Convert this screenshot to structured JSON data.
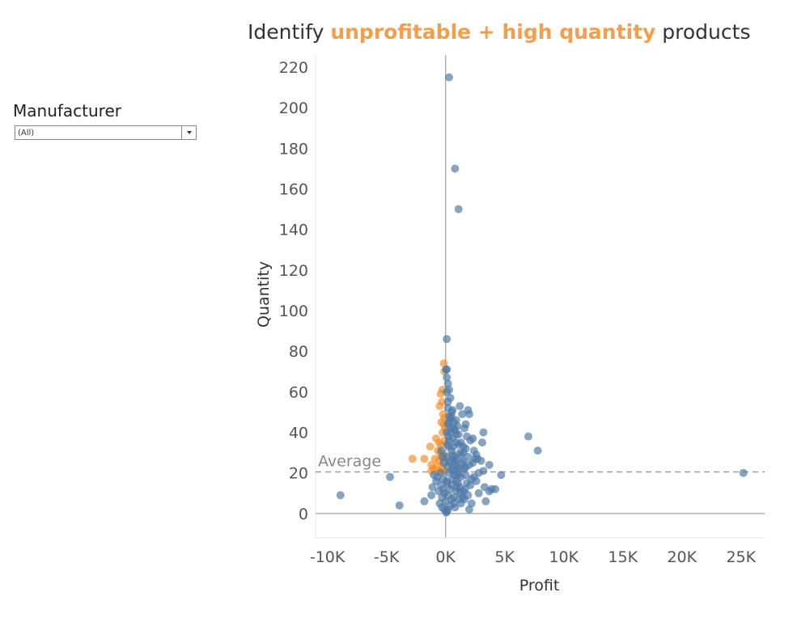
{
  "title": {
    "prefix": "Identify ",
    "highlight": "unprofitable + high quantity",
    "suffix": " products"
  },
  "filter": {
    "label": "Manufacturer",
    "value": "(All)"
  },
  "colors": {
    "profitable": "#4e79a7",
    "unprofitable": "#f28e2b",
    "highlight_text": "#f28e2b",
    "reference_line": "#9e9e9e",
    "axis": "#b0b0b0"
  },
  "chart_data": {
    "type": "scatter",
    "title": "Identify unprofitable + high quantity products",
    "xlabel": "Profit",
    "ylabel": "Quantity",
    "xlim": [
      -11000,
      27000
    ],
    "ylim": [
      -12,
      226
    ],
    "x_ticks": [
      -10000,
      -5000,
      0,
      5000,
      10000,
      15000,
      20000,
      25000
    ],
    "x_tick_labels": [
      "-10K",
      "-5K",
      "0K",
      "5K",
      "10K",
      "15K",
      "20K",
      "25K"
    ],
    "y_ticks": [
      0,
      20,
      40,
      60,
      80,
      100,
      120,
      140,
      160,
      180,
      200,
      220
    ],
    "y_tick_labels": [
      "0",
      "20",
      "40",
      "60",
      "80",
      "100",
      "120",
      "140",
      "160",
      "180",
      "200",
      "220"
    ],
    "reference_line": {
      "label": "Average",
      "axis": "y",
      "value": 20.5
    },
    "series": [
      {
        "color": "#f28e2b",
        "points": [
          [
            -150,
            74
          ],
          [
            -100,
            70
          ],
          [
            -250,
            61
          ],
          [
            -400,
            59
          ],
          [
            -300,
            55
          ],
          [
            -500,
            53
          ],
          [
            -200,
            49
          ],
          [
            -100,
            47
          ],
          [
            -350,
            45
          ],
          [
            -150,
            44
          ],
          [
            -50,
            42
          ],
          [
            -250,
            40
          ],
          [
            -800,
            37
          ],
          [
            -100,
            36
          ],
          [
            -550,
            35
          ],
          [
            -350,
            34
          ],
          [
            -1300,
            33
          ],
          [
            -650,
            31
          ],
          [
            -450,
            30
          ],
          [
            -150,
            29
          ],
          [
            -350,
            28
          ],
          [
            -900,
            27
          ],
          [
            -2800,
            27
          ],
          [
            -1800,
            27
          ],
          [
            -550,
            26
          ],
          [
            -200,
            25
          ],
          [
            -1200,
            24
          ],
          [
            -750,
            23
          ],
          [
            -300,
            22
          ],
          [
            -1000,
            22
          ],
          [
            -1200,
            21
          ],
          [
            -500,
            21
          ],
          [
            -100,
            21
          ]
        ]
      },
      {
        "color": "#4e79a7",
        "points": [
          [
            300,
            215
          ],
          [
            800,
            170
          ],
          [
            1100,
            150
          ],
          [
            100,
            86
          ],
          [
            100,
            71
          ],
          [
            50,
            71
          ],
          [
            100,
            67
          ],
          [
            200,
            64
          ],
          [
            300,
            61
          ],
          [
            100,
            60
          ],
          [
            400,
            57
          ],
          [
            200,
            55
          ],
          [
            1200,
            53
          ],
          [
            1900,
            51
          ],
          [
            200,
            52
          ],
          [
            600,
            51
          ],
          [
            1400,
            49
          ],
          [
            2000,
            49
          ],
          [
            400,
            47
          ],
          [
            900,
            46
          ],
          [
            1700,
            44
          ],
          [
            200,
            44
          ],
          [
            700,
            42
          ],
          [
            1600,
            42
          ],
          [
            3200,
            40
          ],
          [
            400,
            40
          ],
          [
            1100,
            39
          ],
          [
            1800,
            38
          ],
          [
            2300,
            37
          ],
          [
            7000,
            38
          ],
          [
            7800,
            31
          ],
          [
            3100,
            35
          ],
          [
            300,
            36
          ],
          [
            900,
            35
          ],
          [
            1500,
            33
          ],
          [
            2400,
            31
          ],
          [
            1200,
            30
          ],
          [
            600,
            29
          ],
          [
            1900,
            28
          ],
          [
            2500,
            27
          ],
          [
            2700,
            27
          ],
          [
            800,
            26
          ],
          [
            1400,
            25
          ],
          [
            2000,
            24
          ],
          [
            1000,
            23
          ],
          [
            1600,
            22
          ],
          [
            3200,
            21
          ],
          [
            600,
            21
          ],
          [
            300,
            20
          ],
          [
            25200,
            20
          ],
          [
            1100,
            19
          ],
          [
            4700,
            19
          ],
          [
            2200,
            17
          ],
          [
            2600,
            16
          ],
          [
            3700,
            24
          ],
          [
            1300,
            18
          ],
          [
            600,
            17
          ],
          [
            100,
            16
          ],
          [
            1800,
            15
          ],
          [
            3300,
            13
          ],
          [
            3900,
            12
          ],
          [
            3700,
            11
          ],
          [
            4200,
            12
          ],
          [
            2800,
            10
          ],
          [
            1200,
            13
          ],
          [
            500,
            14
          ],
          [
            900,
            11
          ],
          [
            1900,
            9
          ],
          [
            1600,
            7
          ],
          [
            700,
            8
          ],
          [
            3400,
            6
          ],
          [
            2200,
            5
          ],
          [
            1300,
            5
          ],
          [
            400,
            4
          ],
          [
            2000,
            2
          ],
          [
            800,
            3
          ],
          [
            200,
            2
          ],
          [
            100,
            1
          ],
          [
            50,
            0.5
          ],
          [
            -800,
            16
          ],
          [
            -1100,
            13
          ],
          [
            -600,
            11
          ],
          [
            -1200,
            9
          ],
          [
            -300,
            8
          ],
          [
            -500,
            5
          ],
          [
            -1800,
            6
          ],
          [
            -300,
            3
          ],
          [
            -100,
            2
          ],
          [
            -4700,
            18
          ],
          [
            -3900,
            4
          ],
          [
            -8900,
            9
          ],
          [
            -700,
            18
          ],
          [
            -1000,
            19
          ],
          [
            -400,
            14
          ],
          [
            -200,
            12
          ],
          [
            -100,
            10
          ],
          [
            0,
            6
          ],
          [
            200,
            9
          ],
          [
            400,
            12
          ],
          [
            500,
            7
          ],
          [
            700,
            5
          ],
          [
            900,
            16
          ],
          [
            1000,
            20
          ],
          [
            1200,
            22
          ],
          [
            1500,
            11
          ],
          [
            1700,
            19
          ],
          [
            2100,
            14
          ],
          [
            2400,
            18
          ],
          [
            2800,
            20
          ],
          [
            300,
            33
          ],
          [
            500,
            31
          ],
          [
            700,
            28
          ],
          [
            900,
            27
          ],
          [
            400,
            25
          ],
          [
            200,
            23
          ],
          [
            600,
            37
          ],
          [
            800,
            41
          ],
          [
            1000,
            43
          ],
          [
            500,
            48
          ],
          [
            300,
            45
          ],
          [
            1300,
            35
          ],
          [
            1500,
            30
          ],
          [
            1700,
            32
          ],
          [
            2100,
            36
          ],
          [
            -400,
            20
          ],
          [
            -200,
            17
          ],
          [
            150,
            15
          ],
          [
            250,
            38
          ],
          [
            450,
            42
          ],
          [
            650,
            33
          ],
          [
            850,
            24
          ],
          [
            1050,
            15
          ],
          [
            1250,
            10
          ],
          [
            1450,
            8
          ],
          [
            1650,
            12
          ],
          [
            -150,
            25
          ],
          [
            -250,
            28
          ],
          [
            -350,
            31
          ],
          [
            100,
            28
          ],
          [
            150,
            34
          ],
          [
            350,
            26
          ],
          [
            550,
            22
          ],
          [
            750,
            19
          ],
          [
            950,
            13
          ],
          [
            1150,
            7
          ],
          [
            100,
            40
          ],
          [
            300,
            48
          ],
          [
            500,
            50
          ],
          [
            700,
            45
          ],
          [
            900,
            39
          ],
          [
            1100,
            34
          ],
          [
            1300,
            29
          ],
          [
            1500,
            26
          ],
          [
            1700,
            23
          ],
          [
            2300,
            25
          ],
          [
            2600,
            29
          ],
          [
            3000,
            26
          ]
        ]
      }
    ]
  }
}
